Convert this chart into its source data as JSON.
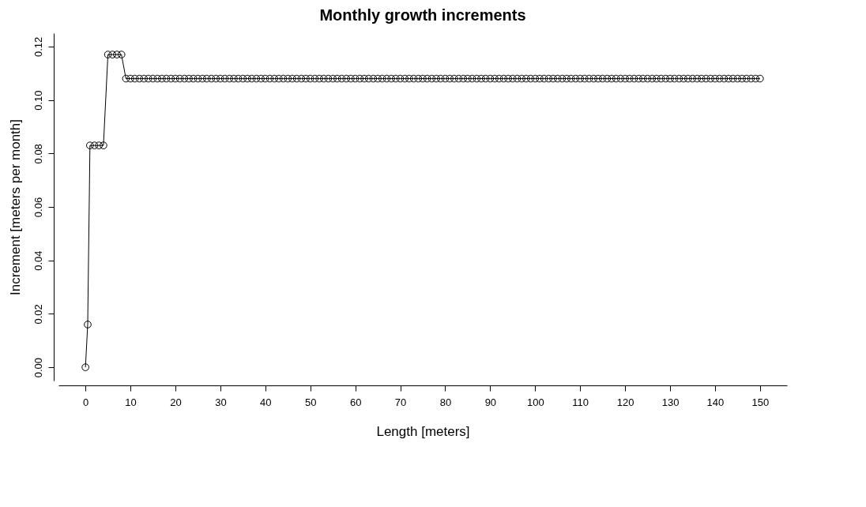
{
  "chart_data": {
    "type": "line",
    "title": "Monthly growth increments",
    "xlabel": "Length [meters]",
    "ylabel": "Increment [meters per month]",
    "x": [
      0,
      0.5,
      1,
      2,
      3,
      4,
      5,
      6,
      7,
      8,
      9,
      10,
      11,
      12,
      13,
      14,
      15,
      16,
      17,
      18,
      19,
      20,
      21,
      22,
      23,
      24,
      25,
      26,
      27,
      28,
      29,
      30,
      31,
      32,
      33,
      34,
      35,
      36,
      37,
      38,
      39,
      40,
      41,
      42,
      43,
      44,
      45,
      46,
      47,
      48,
      49,
      50,
      51,
      52,
      53,
      54,
      55,
      56,
      57,
      58,
      59,
      60,
      61,
      62,
      63,
      64,
      65,
      66,
      67,
      68,
      69,
      70,
      71,
      72,
      73,
      74,
      75,
      76,
      77,
      78,
      79,
      80,
      81,
      82,
      83,
      84,
      85,
      86,
      87,
      88,
      89,
      90,
      91,
      92,
      93,
      94,
      95,
      96,
      97,
      98,
      99,
      100,
      101,
      102,
      103,
      104,
      105,
      106,
      107,
      108,
      109,
      110,
      111,
      112,
      113,
      114,
      115,
      116,
      117,
      118,
      119,
      120,
      121,
      122,
      123,
      124,
      125,
      126,
      127,
      128,
      129,
      130,
      131,
      132,
      133,
      134,
      135,
      136,
      137,
      138,
      139,
      140,
      141,
      142,
      143,
      144,
      145,
      146,
      147,
      148,
      149,
      150
    ],
    "series": [
      {
        "color": "#000000",
        "values": [
          0,
          0.016,
          0.083,
          0.083,
          0.083,
          0.083,
          0.117,
          0.117,
          0.117,
          0.117,
          0.108,
          0.108,
          0.108,
          0.108,
          0.108,
          0.108,
          0.108,
          0.108,
          0.108,
          0.108,
          0.108,
          0.108,
          0.108,
          0.108,
          0.108,
          0.108,
          0.108,
          0.108,
          0.108,
          0.108,
          0.108,
          0.108,
          0.108,
          0.108,
          0.108,
          0.108,
          0.108,
          0.108,
          0.108,
          0.108,
          0.108,
          0.108,
          0.108,
          0.108,
          0.108,
          0.108,
          0.108,
          0.108,
          0.108,
          0.108,
          0.108,
          0.108,
          0.108,
          0.108,
          0.108,
          0.108,
          0.108,
          0.108,
          0.108,
          0.108,
          0.108,
          0.108,
          0.108,
          0.108,
          0.108,
          0.108,
          0.108,
          0.108,
          0.108,
          0.108,
          0.108,
          0.108,
          0.108,
          0.108,
          0.108,
          0.108,
          0.108,
          0.108,
          0.108,
          0.108,
          0.108,
          0.108,
          0.108,
          0.108,
          0.108,
          0.108,
          0.108,
          0.108,
          0.108,
          0.108,
          0.108,
          0.108,
          0.108,
          0.108,
          0.108,
          0.108,
          0.108,
          0.108,
          0.108,
          0.108,
          0.108,
          0.108,
          0.108,
          0.108,
          0.108,
          0.108,
          0.108,
          0.108,
          0.108,
          0.108,
          0.108,
          0.108,
          0.108,
          0.108,
          0.108,
          0.108,
          0.108,
          0.108,
          0.108,
          0.108,
          0.108,
          0.108,
          0.108,
          0.108,
          0.108,
          0.108,
          0.108,
          0.108,
          0.108,
          0.108,
          0.108,
          0.108,
          0.108,
          0.108,
          0.108,
          0.108,
          0.108,
          0.108,
          0.108,
          0.108,
          0.108,
          0.108,
          0.108,
          0.108,
          0.108,
          0.108,
          0.108,
          0.108,
          0.108,
          0.108,
          0.108,
          0.108
        ]
      }
    ],
    "xlim": [
      -6,
      156
    ],
    "ylim": [
      -0.005,
      0.125
    ],
    "xticks": [
      0,
      10,
      20,
      30,
      40,
      50,
      60,
      70,
      80,
      90,
      100,
      110,
      120,
      130,
      140,
      150
    ],
    "yticks": [
      {
        "value": 0,
        "label": "0.00"
      },
      0.02,
      0.04,
      0.06,
      0.08,
      {
        "value": 0.1,
        "label": "0.10"
      },
      0.12
    ],
    "grid": false,
    "legend": false,
    "marker": "circle",
    "line_style": "solid"
  }
}
